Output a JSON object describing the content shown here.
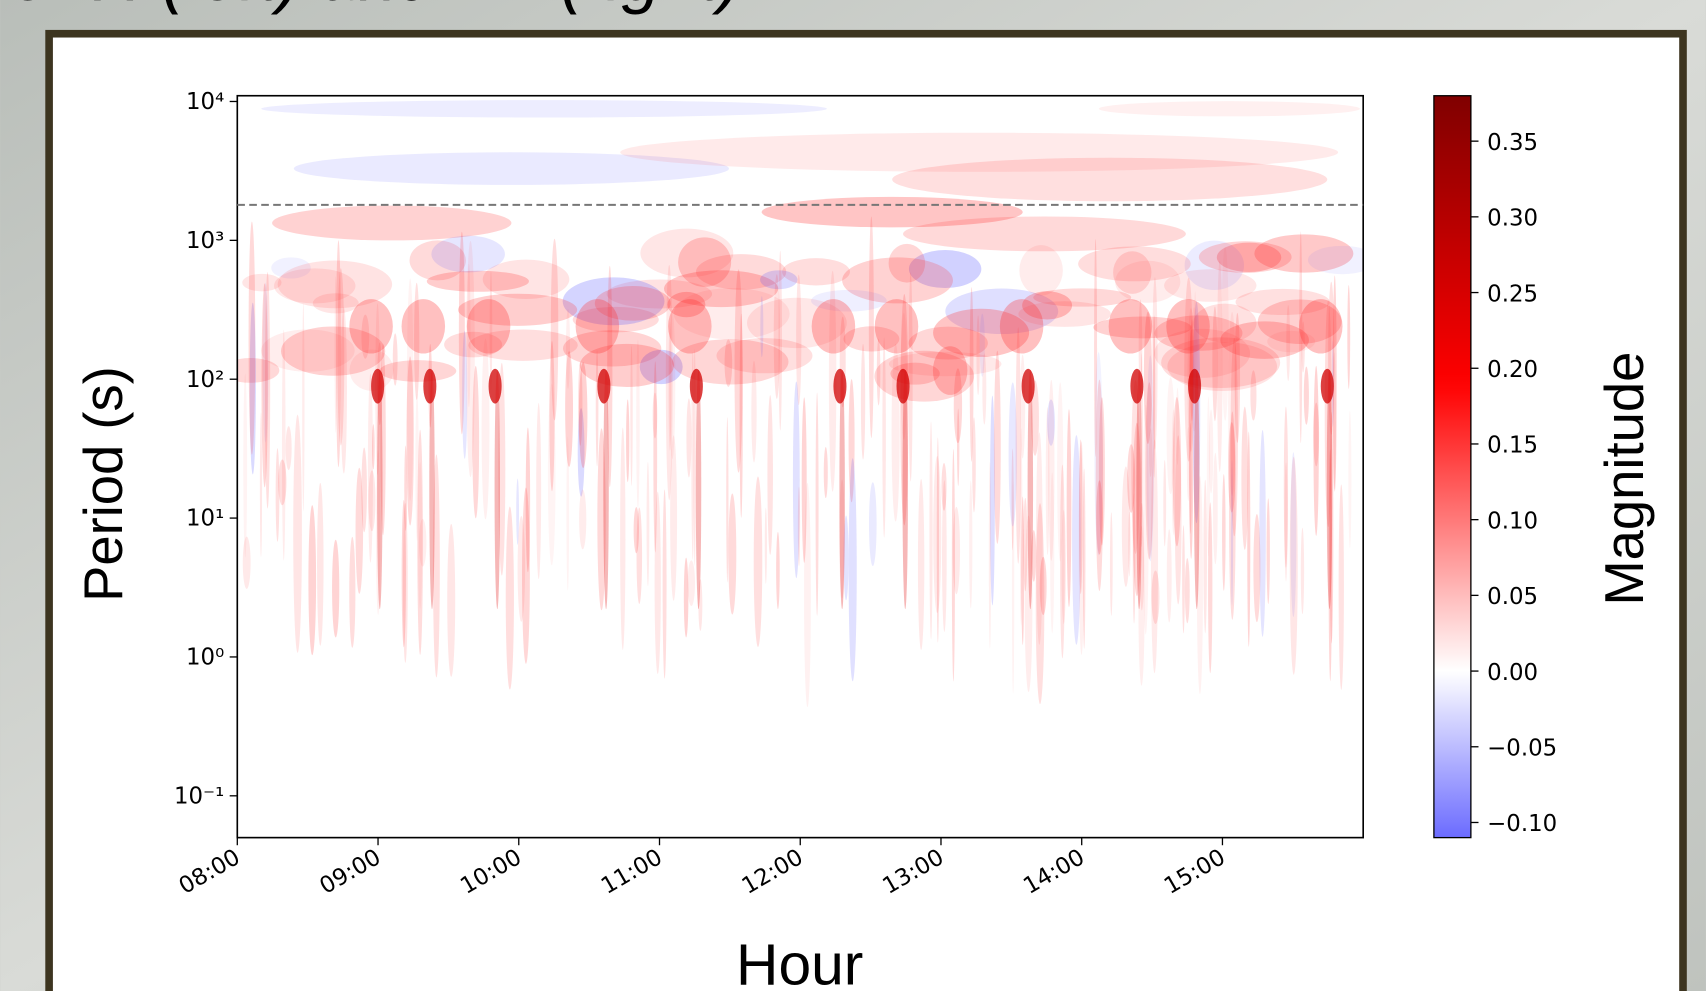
{
  "title_fragment": "for H (left) and ZZ (right).",
  "chart_data": {
    "type": "heatmap",
    "xlabel": "Hour",
    "ylabel": "Period (s)",
    "colorbar_label": "Magnitude",
    "xlim": [
      8,
      16
    ],
    "xticks": [
      {
        "value": 8,
        "label": "08:00"
      },
      {
        "value": 9,
        "label": "09:00"
      },
      {
        "value": 10,
        "label": "10:00"
      },
      {
        "value": 11,
        "label": "11:00"
      },
      {
        "value": 12,
        "label": "12:00"
      },
      {
        "value": 13,
        "label": "13:00"
      },
      {
        "value": 14,
        "label": "14:00"
      },
      {
        "value": 15,
        "label": "15:00"
      }
    ],
    "yscale": "log",
    "ylim": [
      0.05,
      11000
    ],
    "yticks": [
      {
        "value": 0.1,
        "label": "10⁻¹"
      },
      {
        "value": 1,
        "label": "10⁰"
      },
      {
        "value": 10,
        "label": "10¹"
      },
      {
        "value": 100,
        "label": "10²"
      },
      {
        "value": 1000,
        "label": "10³"
      },
      {
        "value": 10000,
        "label": "10⁴"
      }
    ],
    "colormap": "seismic",
    "clim": [
      -0.11,
      0.38
    ],
    "cticks": [
      {
        "value": -0.1,
        "label": "−0.10"
      },
      {
        "value": -0.05,
        "label": "−0.05"
      },
      {
        "value": 0,
        "label": "0.00"
      },
      {
        "value": 0.05,
        "label": "0.05"
      },
      {
        "value": 0.1,
        "label": "0.10"
      },
      {
        "value": 0.15,
        "label": "0.15"
      },
      {
        "value": 0.2,
        "label": "0.20"
      },
      {
        "value": 0.25,
        "label": "0.25"
      },
      {
        "value": 0.3,
        "label": "0.30"
      },
      {
        "value": 0.35,
        "label": "0.35"
      }
    ],
    "reference_line": 1800
  }
}
